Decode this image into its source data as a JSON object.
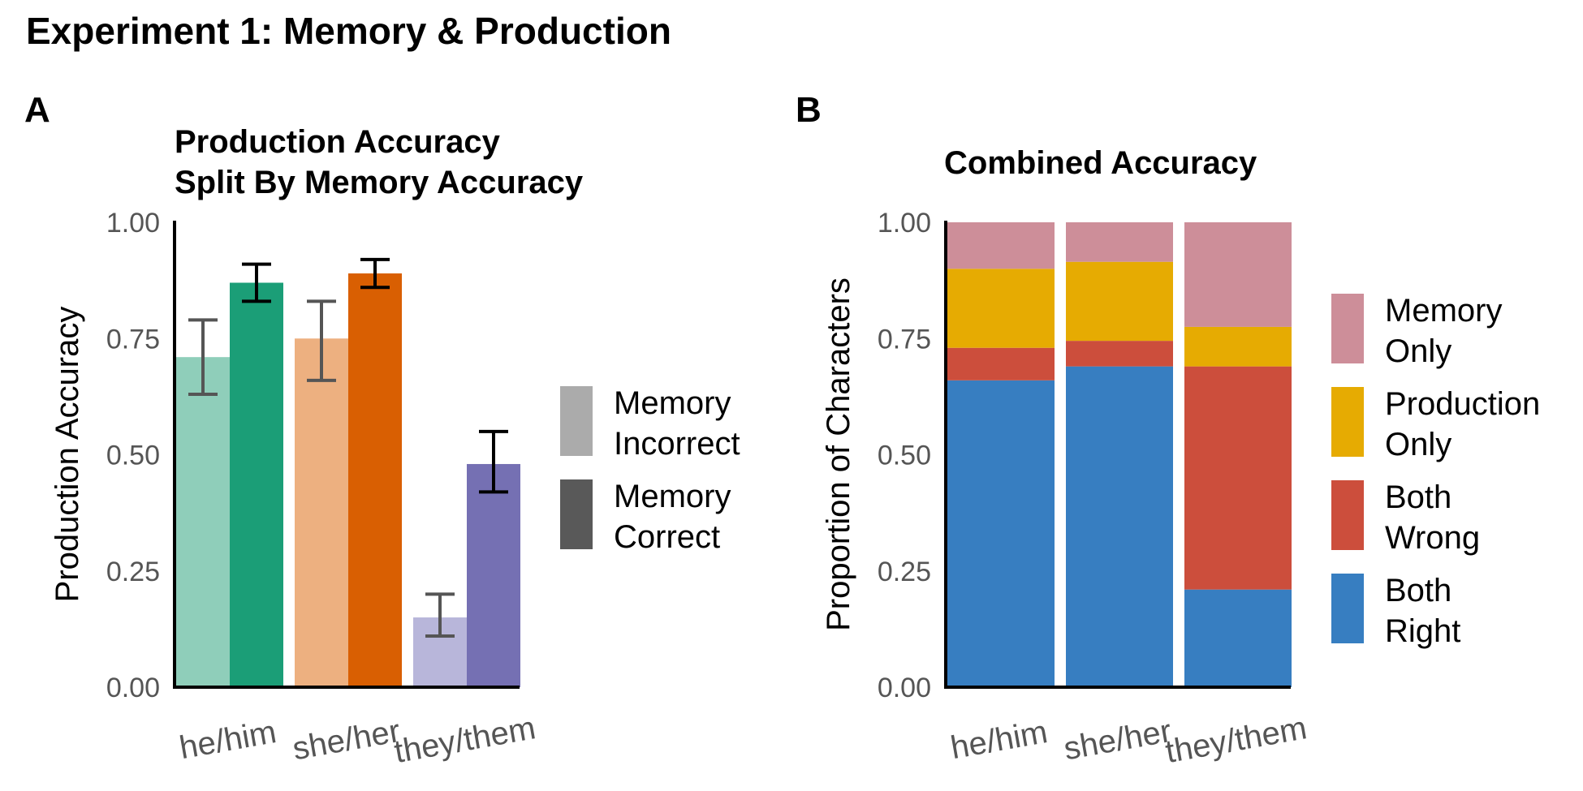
{
  "figure": {
    "title": "Experiment 1: Memory & Production"
  },
  "chart_data": [
    {
      "panel": "A",
      "type": "bar",
      "title_line1": "Production Accuracy",
      "title_line2": "Split By Memory Accuracy",
      "xlabel": "",
      "ylabel": "Production Accuracy",
      "ylim": [
        0,
        1
      ],
      "yticks": [
        "0.00",
        "0.25",
        "0.50",
        "0.75",
        "1.00"
      ],
      "categories": [
        "he/him",
        "she/her",
        "they/them"
      ],
      "series": [
        {
          "name": "Memory Incorrect",
          "values": [
            0.71,
            0.75,
            0.15
          ],
          "err_low": [
            0.63,
            0.66,
            0.11
          ],
          "err_high": [
            0.79,
            0.83,
            0.2
          ],
          "colors": [
            "#8fceba",
            "#edb080",
            "#b8b6da"
          ]
        },
        {
          "name": "Memory Correct",
          "values": [
            0.87,
            0.89,
            0.48
          ],
          "err_low": [
            0.83,
            0.86,
            0.42
          ],
          "err_high": [
            0.91,
            0.92,
            0.55
          ],
          "colors": [
            "#1b9e77",
            "#d95f02",
            "#7570b3"
          ]
        }
      ],
      "legend": {
        "position": "right",
        "items": [
          {
            "line1": "Memory",
            "line2": "Incorrect",
            "color": "#ababab"
          },
          {
            "line1": "Memory",
            "line2": "Correct",
            "color": "#595959"
          }
        ]
      },
      "grid": false
    },
    {
      "panel": "B",
      "type": "bar",
      "stacked": true,
      "title": "Combined Accuracy",
      "xlabel": "",
      "ylabel": "Proportion of Characters",
      "ylim": [
        0,
        1
      ],
      "yticks": [
        "0.00",
        "0.25",
        "0.50",
        "0.75",
        "1.00"
      ],
      "categories": [
        "he/him",
        "she/her",
        "they/them"
      ],
      "series": [
        {
          "name": "Both Right",
          "values": [
            0.66,
            0.69,
            0.21
          ],
          "color": "#377ec1"
        },
        {
          "name": "Both Wrong",
          "values": [
            0.07,
            0.055,
            0.48
          ],
          "color": "#cc4e3c"
        },
        {
          "name": "Production Only",
          "values": [
            0.17,
            0.17,
            0.085
          ],
          "color": "#e6ab02"
        },
        {
          "name": "Memory Only",
          "values": [
            0.1,
            0.085,
            0.225
          ],
          "color": "#cd8e99"
        }
      ],
      "legend": {
        "position": "right",
        "items": [
          {
            "line1": "Memory",
            "line2": "Only",
            "color": "#cd8e99"
          },
          {
            "line1": "Production",
            "line2": "Only",
            "color": "#e6ab02"
          },
          {
            "line1": "Both",
            "line2": "Wrong",
            "color": "#cc4e3c"
          },
          {
            "line1": "Both",
            "line2": "Right",
            "color": "#377ec1"
          }
        ]
      },
      "grid": false
    }
  ]
}
